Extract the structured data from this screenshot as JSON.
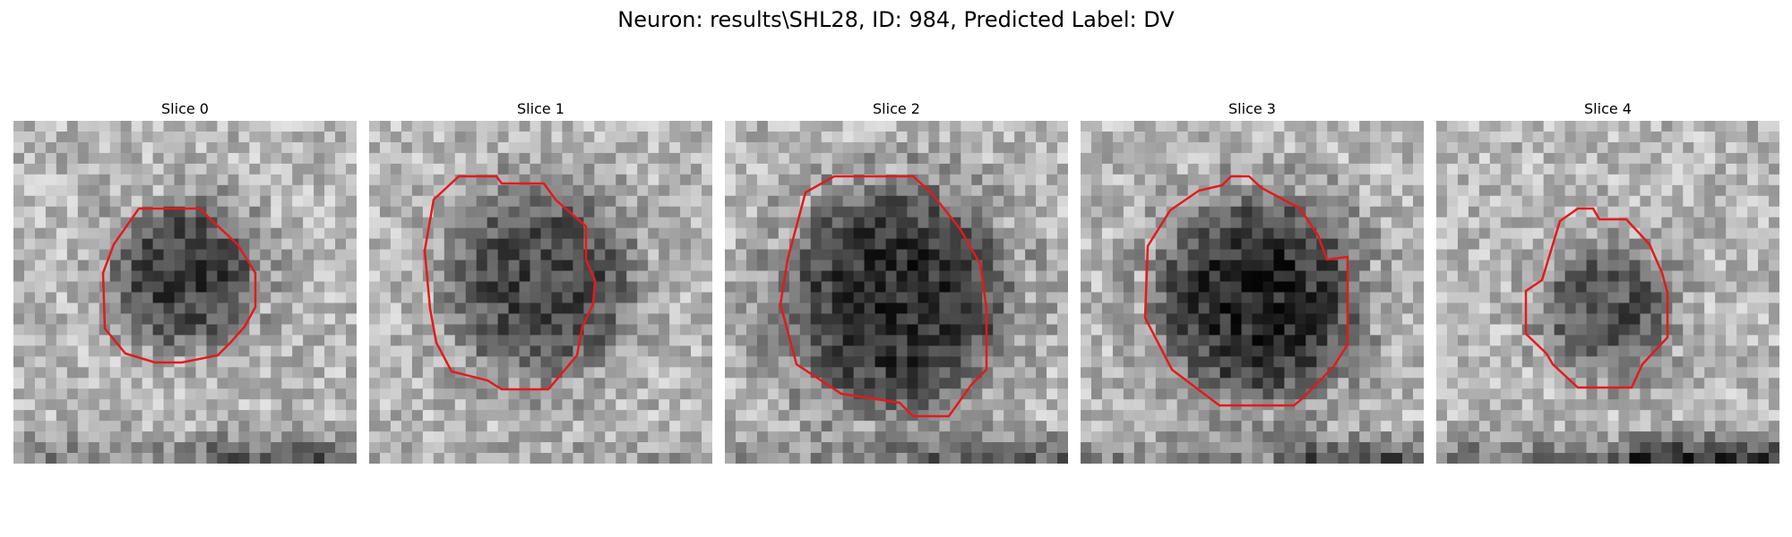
{
  "figure": {
    "title": "Neuron: results\\SHL28, ID: 984, Predicted Label: DV"
  },
  "colors": {
    "contour": "#e31a1c",
    "background": "#ffffff"
  },
  "panels": [
    {
      "title": "Slice 0"
    },
    {
      "title": "Slice 1"
    },
    {
      "title": "Slice 2"
    },
    {
      "title": "Slice 3"
    },
    {
      "title": "Slice 4"
    }
  ]
}
